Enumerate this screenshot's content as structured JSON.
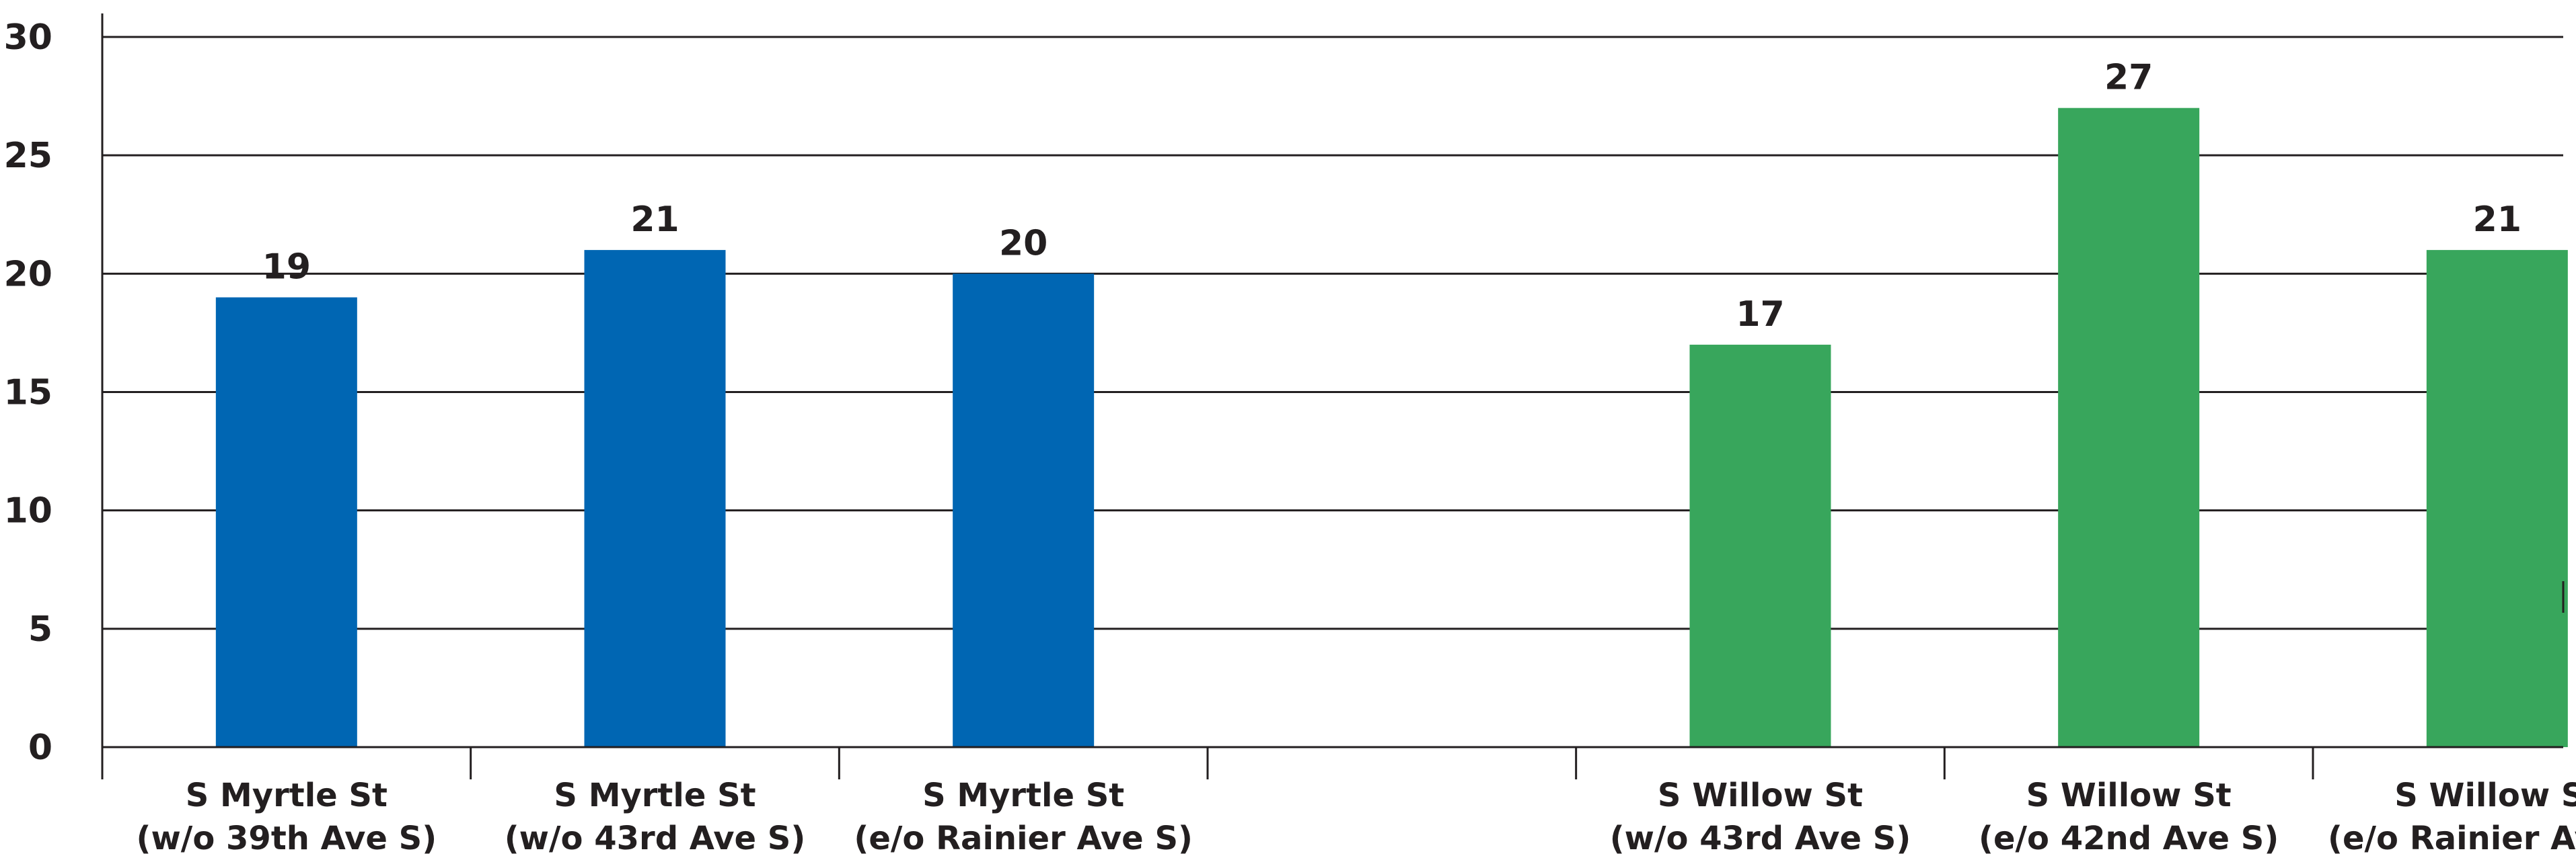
{
  "chart_data": {
    "type": "bar",
    "categories": [
      [
        "S Myrtle St",
        "(w/o 39th Ave S)"
      ],
      [
        "S Myrtle St",
        "(w/o 43rd Ave S)"
      ],
      [
        "S Myrtle St",
        "(e/o Rainier Ave S)"
      ],
      [
        "",
        ""
      ],
      [
        "S Willow St",
        "(w/o 43rd Ave S)"
      ],
      [
        "S Willow St",
        "(e/o 42nd Ave S)"
      ],
      [
        "S Willow St",
        "(e/o Rainier Ave S)"
      ]
    ],
    "values": [
      19,
      21,
      20,
      null,
      17,
      27,
      21
    ],
    "value_labels": [
      "19",
      "21",
      "20",
      "",
      "17",
      "27",
      "21"
    ],
    "bar_colors": [
      "#0066b3",
      "#0066b3",
      "#0066b3",
      null,
      "#38a65c",
      "#38a65c",
      "#38a65c"
    ],
    "ylim": [
      0,
      30
    ],
    "yticks": [
      0,
      5,
      10,
      15,
      20,
      25,
      30
    ],
    "grid": true,
    "legend": "none",
    "title": "",
    "xlabel": "",
    "ylabel": ""
  }
}
